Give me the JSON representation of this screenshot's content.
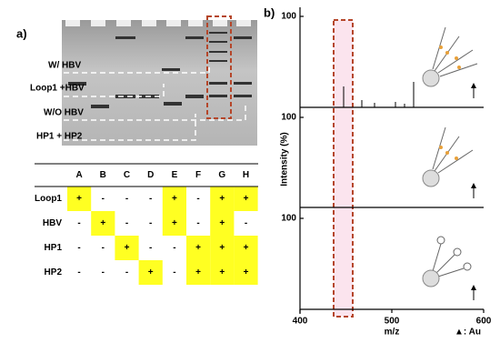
{
  "panel_a": {
    "label": "a)",
    "gel_labels": [
      "W/ HBV",
      "Loop1 +HBV",
      "W/O HBV",
      "HP1 + HP2"
    ],
    "table": {
      "columns": [
        "A",
        "B",
        "C",
        "D",
        "E",
        "F",
        "G",
        "H"
      ],
      "rows": [
        {
          "name": "Loop1",
          "cells": [
            "+",
            "-",
            "-",
            "-",
            "+",
            "-",
            "+",
            "+"
          ]
        },
        {
          "name": "HBV",
          "cells": [
            "-",
            "+",
            "-",
            "-",
            "+",
            "-",
            "+",
            "-"
          ]
        },
        {
          "name": "HP1",
          "cells": [
            "-",
            "-",
            "+",
            "-",
            "-",
            "+",
            "+",
            "+"
          ]
        },
        {
          "name": "HP2",
          "cells": [
            "-",
            "-",
            "-",
            "+",
            "-",
            "+",
            "+",
            "+"
          ]
        }
      ]
    }
  },
  "panel_b": {
    "label": "b)",
    "y_label": "Intensity (%)",
    "panel_ticks": [
      100,
      100,
      100
    ],
    "x_ticks": [
      400,
      500,
      600
    ],
    "x_label": "m/z",
    "legend": "▲: Au"
  }
}
